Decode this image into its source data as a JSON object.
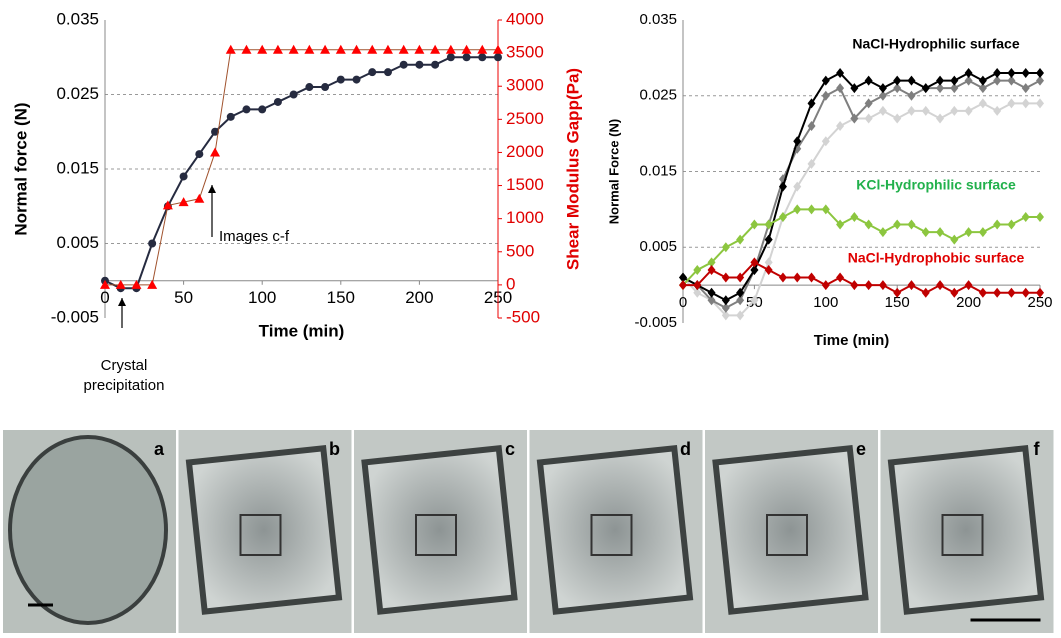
{
  "chart_data": [
    {
      "type": "line",
      "ylabel": "Normal force (N)",
      "xlabel": "Time (min)",
      "y2label": "Shear Modulus Gapp(Pa)",
      "x": [
        0,
        10,
        20,
        30,
        40,
        50,
        60,
        70,
        80,
        90,
        100,
        110,
        120,
        130,
        140,
        150,
        160,
        170,
        180,
        190,
        200,
        210,
        220,
        230,
        240,
        250
      ],
      "xlim": [
        0,
        250
      ],
      "xticks": [
        0,
        50,
        100,
        150,
        200,
        250
      ],
      "ylim": [
        -0.005,
        0.035
      ],
      "yticks": [
        -0.005,
        0.005,
        0.015,
        0.025,
        0.035
      ],
      "y2lim": [
        -500,
        4000
      ],
      "y2ticks": [
        -500,
        0,
        500,
        1000,
        1500,
        2000,
        2500,
        3000,
        3500,
        4000
      ],
      "grid": true,
      "annotations": [
        "Crystal precipitation",
        "Images c-f"
      ],
      "series": [
        {
          "color": "#262b40",
          "marker": "circle",
          "values": [
            0,
            -0.001,
            -0.001,
            0.005,
            0.01,
            0.014,
            0.017,
            0.02,
            0.022,
            0.023,
            0.023,
            0.024,
            0.025,
            0.026,
            0.026,
            0.027,
            0.027,
            0.028,
            0.028,
            0.029,
            0.029,
            0.029,
            0.03,
            0.03,
            0.03,
            0.03
          ]
        },
        {
          "color": "#ff0000",
          "marker": "triangle",
          "axis": "y2",
          "values": [
            0,
            0,
            0,
            0,
            1200,
            1250,
            1300,
            2000,
            3550,
            3550,
            3550,
            3550,
            3550,
            3550,
            3550,
            3550,
            3550,
            3550,
            3550,
            3550,
            3550,
            3550,
            3550,
            3550,
            3550,
            3550
          ]
        }
      ]
    },
    {
      "type": "line",
      "ylabel": "Normal Force (N)",
      "xlabel": "Time (min)",
      "x": [
        0,
        10,
        20,
        30,
        40,
        50,
        60,
        70,
        80,
        90,
        100,
        110,
        120,
        130,
        140,
        150,
        160,
        170,
        180,
        190,
        200,
        210,
        220,
        230,
        240,
        250
      ],
      "xlim": [
        0,
        250
      ],
      "xticks": [
        0,
        50,
        100,
        150,
        200,
        250
      ],
      "ylim": [
        -0.005,
        0.035
      ],
      "yticks": [
        -0.005,
        0.005,
        0.015,
        0.025,
        0.035
      ],
      "grid": true,
      "series": [
        {
          "color": "#d3d3d3",
          "marker": "diamond",
          "values": [
            0.001,
            -0.001,
            -0.002,
            -0.004,
            -0.004,
            -0.002,
            0.003,
            0.009,
            0.013,
            0.016,
            0.019,
            0.021,
            0.022,
            0.022,
            0.023,
            0.022,
            0.023,
            0.023,
            0.022,
            0.023,
            0.023,
            0.024,
            0.023,
            0.024,
            0.024,
            0.024
          ]
        },
        {
          "color": "#7f7f7f",
          "marker": "diamond",
          "values": [
            0.001,
            0,
            -0.002,
            -0.003,
            -0.002,
            0.002,
            0.008,
            0.014,
            0.018,
            0.021,
            0.025,
            0.026,
            0.022,
            0.024,
            0.025,
            0.026,
            0.025,
            0.026,
            0.026,
            0.026,
            0.027,
            0.026,
            0.027,
            0.027,
            0.026,
            0.027
          ]
        },
        {
          "name": "NaCl-Hydrophilic surface",
          "color": "#000000",
          "marker": "diamond",
          "values": [
            0.001,
            0,
            -0.001,
            -0.002,
            -0.001,
            0.002,
            0.006,
            0.013,
            0.019,
            0.024,
            0.027,
            0.028,
            0.026,
            0.027,
            0.026,
            0.027,
            0.027,
            0.026,
            0.027,
            0.027,
            0.028,
            0.027,
            0.028,
            0.028,
            0.028,
            0.028
          ]
        },
        {
          "name": "KCl-Hydrophilic surface",
          "color": "#8cc63f",
          "marker": "diamond",
          "label_color": "#22b14c",
          "values": [
            0,
            0.002,
            0.003,
            0.005,
            0.006,
            0.008,
            0.008,
            0.009,
            0.01,
            0.01,
            0.01,
            0.008,
            0.009,
            0.008,
            0.007,
            0.008,
            0.008,
            0.007,
            0.007,
            0.006,
            0.007,
            0.007,
            0.008,
            0.008,
            0.009,
            0.009
          ]
        },
        {
          "name": "NaCl-Hydrophobic surface",
          "color": "#c00000",
          "marker": "diamond",
          "label_color": "#e00000",
          "values": [
            0,
            0,
            0.002,
            0.001,
            0.001,
            0.003,
            0.002,
            0.001,
            0.001,
            0.001,
            0,
            0.001,
            0,
            0,
            0,
            -0.001,
            0,
            -0.001,
            0,
            -0.001,
            0,
            -0.001,
            -0.001,
            -0.001,
            -0.001,
            -0.001
          ]
        }
      ]
    }
  ],
  "panels": {
    "labels": [
      "a",
      "b",
      "c",
      "d",
      "e",
      "f"
    ]
  }
}
